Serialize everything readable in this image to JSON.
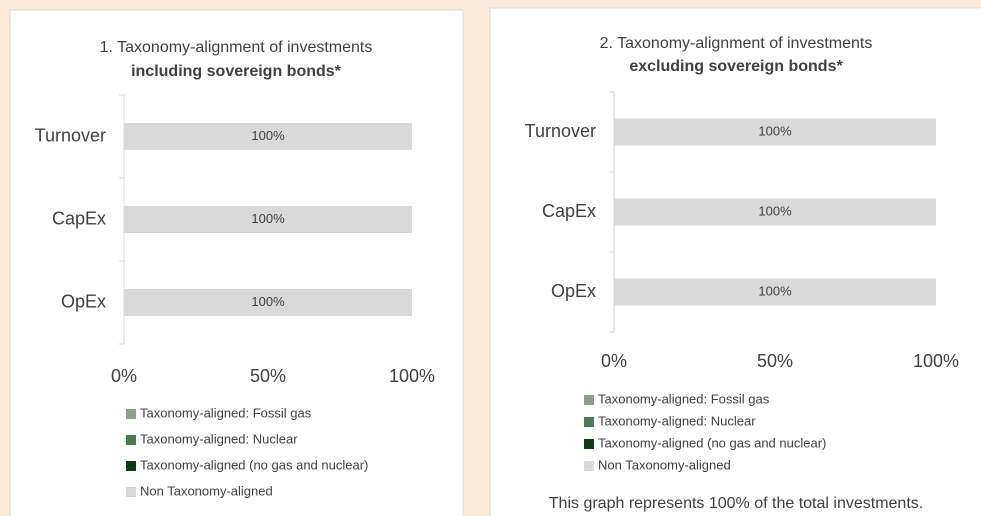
{
  "chart_data": [
    {
      "type": "stacked-barh",
      "title": "1. Taxonomy-alignment of investments",
      "subtitle": "including sovereign bonds*",
      "categories": [
        "Turnover",
        "CapEx",
        "OpEx"
      ],
      "series": [
        {
          "name": "Taxonomy-aligned: Fossil gas",
          "color": "#86a389",
          "values": [
            0,
            0,
            0
          ]
        },
        {
          "name": "Taxonomy-aligned: Nuclear",
          "color": "#4e7a55",
          "values": [
            0,
            0,
            0
          ]
        },
        {
          "name": "Taxonomy-aligned (no gas and nuclear)",
          "color": "#0d3b12",
          "values": [
            0,
            0,
            0
          ]
        },
        {
          "name": "Non Taxonomy-aligned",
          "color": "#d9d9d9",
          "values": [
            100,
            100,
            100
          ],
          "value_labels": [
            "100%",
            "100%",
            "100%"
          ]
        }
      ],
      "xlim": [
        0,
        100
      ],
      "xticks": [
        {
          "value": 0,
          "label": "0%"
        },
        {
          "value": 50,
          "label": "50%"
        },
        {
          "value": 100,
          "label": "100%"
        }
      ]
    },
    {
      "type": "stacked-barh",
      "title": "2. Taxonomy-alignment of investments",
      "subtitle": "excluding sovereign bonds*",
      "categories": [
        "Turnover",
        "CapEx",
        "OpEx"
      ],
      "series": [
        {
          "name": "Taxonomy-aligned: Fossil gas",
          "color": "#86a389",
          "values": [
            0,
            0,
            0
          ]
        },
        {
          "name": "Taxonomy-aligned: Nuclear",
          "color": "#4e7a55",
          "values": [
            0,
            0,
            0
          ]
        },
        {
          "name": "Taxonomy-aligned (no gas and nuclear)",
          "color": "#0d3b12",
          "values": [
            0,
            0,
            0
          ]
        },
        {
          "name": "Non Taxonomy-aligned",
          "color": "#d9d9d9",
          "values": [
            100,
            100,
            100
          ],
          "value_labels": [
            "100%",
            "100%",
            "100%"
          ]
        }
      ],
      "xlim": [
        0,
        100
      ],
      "xticks": [
        {
          "value": 0,
          "label": "0%"
        },
        {
          "value": 50,
          "label": "50%"
        },
        {
          "value": 100,
          "label": "100%"
        }
      ],
      "note": "This graph represents 100% of the total investments."
    }
  ]
}
